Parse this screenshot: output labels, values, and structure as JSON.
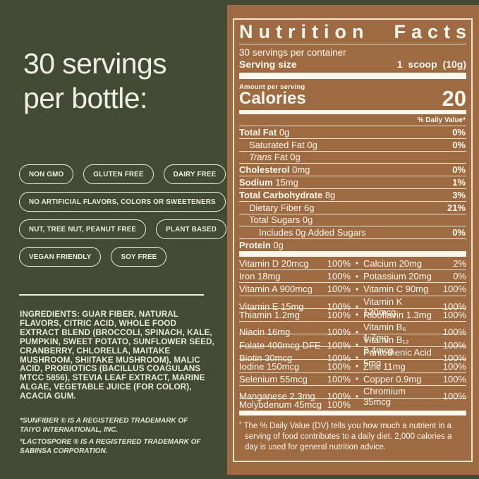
{
  "colors": {
    "background": "#424a33",
    "panel_brown": "#9e6a42",
    "cream": "#edeedd",
    "label_text": "#fdf8ee"
  },
  "left_panel": {
    "headline_line1": "30 servings",
    "headline_line2": "per bottle:",
    "badge_rows": [
      [
        "NON GMO",
        "GLUTEN FREE",
        "DAIRY FREE"
      ],
      [
        "NO ARTIFICIAL FLAVORS, COLORS OR SWEETENERS"
      ],
      [
        "NUT, TREE NUT, PEANUT FREE",
        "PLANT BASED"
      ],
      [
        "VEGAN FRIENDLY",
        "SOY FREE"
      ]
    ],
    "ingredients": "INGREDIENTS: GUAR FIBER, NATURAL FLAVORS, CITRIC ACID, WHOLE FOOD EXTRACT BLEND (BROCCOLI, SPINACH, KALE, PUMPKIN, SWEET POTATO, SUNFLOWER SEED, CRANBERRY, CHLORELLA, MAITAKE MUSHROOM, SHIITAKE MUSHROOM), MALIC ACID, PROBIOTICS (BACILLUS COAGULANS MTCC 5856), STEVIA LEAF EXTRACT, MARINE ALGAE, VEGETABLE JUICE (FOR COLOR), ACACIA GUM.",
    "trademarks": [
      "*SUNFIBER ® IS A REGISTERED TRADEMARK OF TAIYO INTERNATIONAL, INC.",
      "*LACTOSPORE ® IS A REGISTERED TRADEMARK OF SABINSA CORPORATION."
    ]
  },
  "nutrition_facts": {
    "title_word1": "Nutrition",
    "title_word2": "Facts",
    "servings_per_container": "30 servings per container",
    "serving_size_label": "Serving size",
    "serving_size_value": "1 scoop (10g)",
    "amount_per_serving": "Amount per serving",
    "calories_label": "Calories",
    "calories_value": "20",
    "daily_value_header": "% Daily Value*",
    "main_rows": [
      {
        "bold": "Total Fat",
        "plain": " 0g",
        "pct": "0%",
        "indent": 0
      },
      {
        "plain": "Saturated Fat 0g",
        "pct": "0%",
        "indent": 1
      },
      {
        "italic": "Trans",
        "plain": " Fat 0g",
        "pct": "",
        "indent": 1
      },
      {
        "bold": "Cholesterol",
        "plain": " 0mg",
        "pct": "0%",
        "indent": 0
      },
      {
        "bold": "Sodium",
        "plain": " 15mg",
        "pct": "1%",
        "indent": 0
      },
      {
        "bold": "Total Carbohydrate",
        "plain": " 8g",
        "pct": "3%",
        "indent": 0
      },
      {
        "plain": "Dietary Fiber 6g",
        "pct": "21%",
        "indent": 1
      },
      {
        "plain": "Total Sugars 0g",
        "pct": "",
        "indent": 1
      },
      {
        "plain": "Includes 0g Added Sugars",
        "pct": "0%",
        "indent": 2
      },
      {
        "bold": "Protein",
        "plain": " 0g",
        "pct": "",
        "indent": 0
      }
    ],
    "bullet": "•",
    "vitamin_rows": [
      {
        "left": "Vitamin D 20mcg",
        "left_pct": "100%",
        "right": "Calcium 20mg",
        "right_pct": "2%"
      },
      {
        "left": "Iron 18mg",
        "left_pct": "100%",
        "right": "Potassium 20mg",
        "right_pct": "0%"
      },
      {
        "left": "Vitamin A 900mcg",
        "left_pct": "100%",
        "right": "Vitamin C 90mg",
        "right_pct": "100%"
      },
      {
        "left": "Vitamin E 15mg",
        "left_pct": "100%",
        "right": "Vitamin K 120mcg",
        "right_pct": "100%"
      },
      {
        "left": "Thiamin 1.2mg",
        "left_pct": "100%",
        "right": "Riboflavin 1.3mg",
        "right_pct": "100%"
      },
      {
        "left": "Niacin 16mg",
        "left_pct": "100%",
        "right": "Vitamin B₆ 1.7mg",
        "right_pct": "100%"
      },
      {
        "left": "Folate 400mcg DFE",
        "left_pct": "100%",
        "right": "Vitamin B₁₂ 2.4mcg",
        "right_pct": "100%"
      },
      {
        "left": "Biotin 30mcg",
        "left_pct": "100%",
        "right": "Pantothenic Acid 5mg",
        "right_pct": "100%"
      },
      {
        "left": "Iodine 150mcg",
        "left_pct": "100%",
        "right": "Zinc 11mg",
        "right_pct": "100%"
      },
      {
        "left": "Selenium 55mcg",
        "left_pct": "100%",
        "right": "Copper 0.9mg",
        "right_pct": "100%"
      },
      {
        "left": "Manganese 2.3mg",
        "left_pct": "100%",
        "right": "Chromium 35mcg",
        "right_pct": "100%"
      },
      {
        "left": "Molybdenum 45mcg",
        "left_pct": "100%",
        "right": "",
        "right_pct": ""
      }
    ],
    "footnote_star": "*",
    "footnote": "The % Daily Value (DV) tells you how much a nutrient in a serving of food contributes to a daily diet. 2,000 calories a day is used for general nutrition advice."
  }
}
